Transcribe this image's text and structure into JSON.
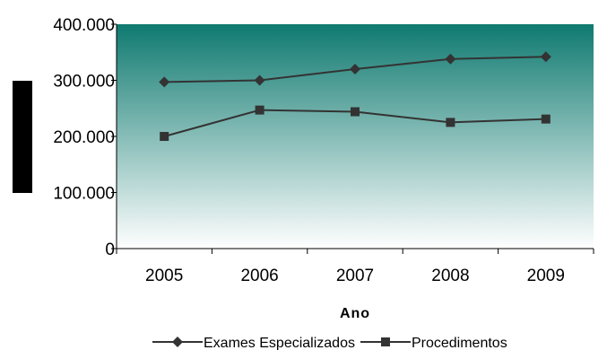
{
  "chart_data": {
    "type": "line",
    "title": "",
    "xlabel": "Ano",
    "ylabel": "",
    "categories": [
      "2005",
      "2006",
      "2007",
      "2008",
      "2009"
    ],
    "ylim": [
      0,
      400000
    ],
    "yticks": [
      0,
      100000,
      200000,
      300000,
      400000
    ],
    "ytick_labels": [
      "0",
      "100.000",
      "200.000",
      "300.000",
      "400.000"
    ],
    "grid": false,
    "legend_position": "bottom",
    "series": [
      {
        "name": "Exames Especializados",
        "marker": "diamond",
        "values": [
          297000,
          300000,
          320000,
          338000,
          342000
        ]
      },
      {
        "name": "Procedimentos",
        "marker": "square",
        "values": [
          200000,
          247000,
          244000,
          225000,
          231000
        ]
      }
    ],
    "colors": {
      "line": "#333333",
      "plot_gradient_top": "#0f7a70",
      "plot_gradient_bottom": "#ffffff",
      "ylabel_box": "#000000"
    }
  }
}
